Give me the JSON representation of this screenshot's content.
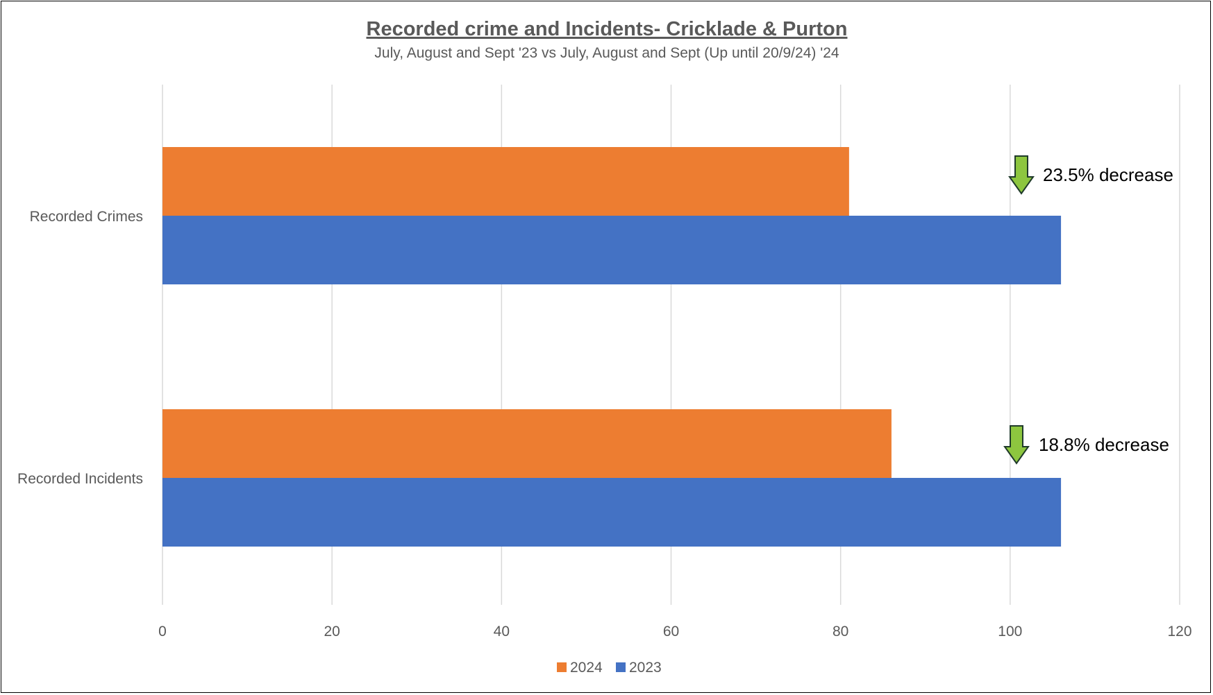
{
  "chart_data": {
    "type": "bar",
    "orientation": "horizontal",
    "title": "Recorded crime and Incidents- Cricklade & Purton",
    "subtitle": "July, August and Sept '23 vs July, August and Sept (Up until 20/9/24) '24",
    "categories": [
      "Recorded Crimes",
      "Recorded Incidents"
    ],
    "series": [
      {
        "name": "2024",
        "color": "#ED7D31",
        "values": [
          81,
          86
        ]
      },
      {
        "name": "2023",
        "color": "#4472C4",
        "values": [
          106,
          106
        ]
      }
    ],
    "xlim": [
      0,
      120
    ],
    "xticks": [
      0,
      20,
      40,
      60,
      80,
      100,
      120
    ],
    "grid": true,
    "legend": "bottom",
    "annotations": [
      {
        "category": "Recorded Crimes",
        "text": "23.5% decrease",
        "icon": "down-arrow-icon",
        "icon_color": "#8DC63F"
      },
      {
        "category": "Recorded Incidents",
        "text": "18.8% decrease",
        "icon": "down-arrow-icon",
        "icon_color": "#8DC63F"
      }
    ]
  }
}
